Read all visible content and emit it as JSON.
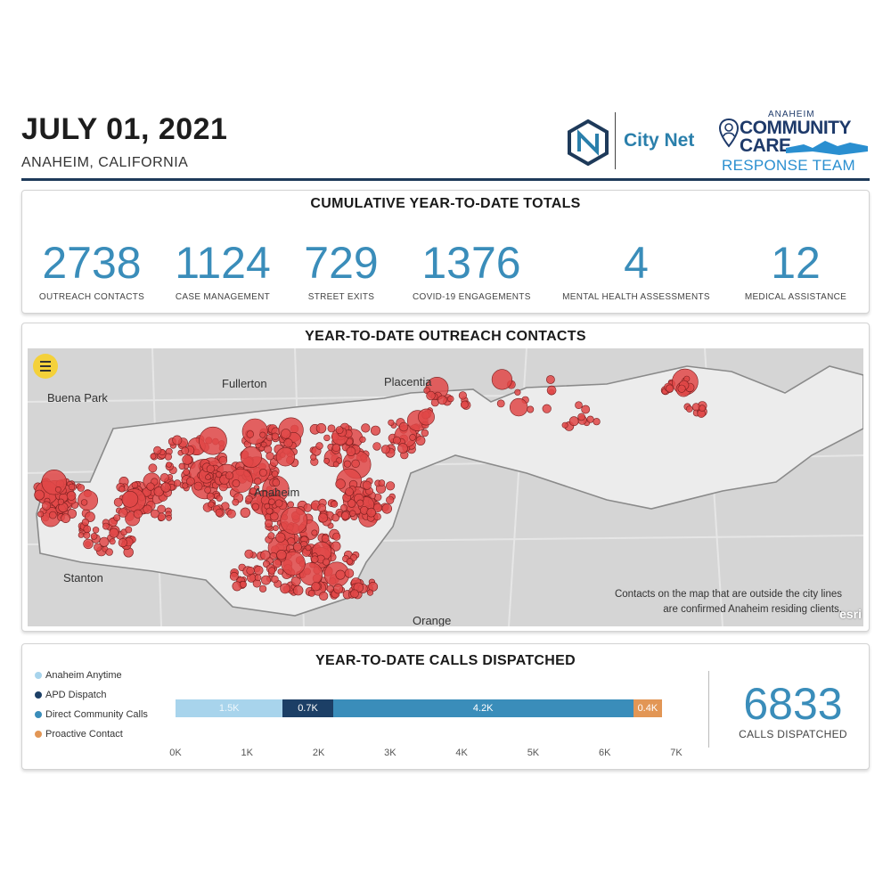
{
  "header": {
    "date": "JULY 01, 2021",
    "location": "ANAHEIM, CALIFORNIA",
    "citynet_text": "City Net",
    "cc_anaheim": "ANAHEIM",
    "cc_community": "COMMUNITY",
    "cc_care": "CARE",
    "cc_response": "RESPONSE TEAM"
  },
  "totals": {
    "title": "CUMULATIVE YEAR-TO-DATE TOTALS",
    "items": [
      {
        "value": "2738",
        "label": "OUTREACH CONTACTS"
      },
      {
        "value": "1124",
        "label": "CASE MANAGEMENT"
      },
      {
        "value": "729",
        "label": "STREET EXITS"
      },
      {
        "value": "1376",
        "label": "COVID-19 ENGAGEMENTS"
      },
      {
        "value": "4",
        "label": "MENTAL HEALTH ASSESSMENTS"
      },
      {
        "value": "12",
        "label": "MEDICAL ASSISTANCE"
      }
    ]
  },
  "map": {
    "title": "YEAR-TO-DATE OUTREACH CONTACTS",
    "places": [
      "Buena Park",
      "Fullerton",
      "Placentia",
      "Anaheim",
      "Stanton",
      "Orange"
    ],
    "note": "Contacts on the map that are outside the city lines are confirmed Anaheim residing clients.",
    "esri": "esri",
    "colors": {
      "land": "#d5d5d5",
      "city": "#ececec",
      "dots": "#e04848"
    }
  },
  "calls": {
    "title": "YEAR-TO-DATE CALLS DISPATCHED",
    "total": "6833",
    "total_label": "CALLS DISPATCHED"
  },
  "chart_data": {
    "type": "bar",
    "orientation": "horizontal-stacked",
    "series": [
      {
        "name": "Anaheim Anytime",
        "value": 1.5,
        "label": "1.5K",
        "color": "#a8d4ec"
      },
      {
        "name": "APD Dispatch",
        "value": 0.7,
        "label": "0.7K",
        "color": "#1c3f66"
      },
      {
        "name": "Direct Community Calls",
        "value": 4.2,
        "label": "4.2K",
        "color": "#3a8dba"
      },
      {
        "name": "Proactive Contact",
        "value": 0.4,
        "label": "0.4K",
        "color": "#e29655"
      }
    ],
    "xticks": [
      "0K",
      "1K",
      "2K",
      "3K",
      "4K",
      "5K",
      "6K",
      "7K"
    ],
    "xlim": [
      0,
      7
    ],
    "legend": "left"
  }
}
